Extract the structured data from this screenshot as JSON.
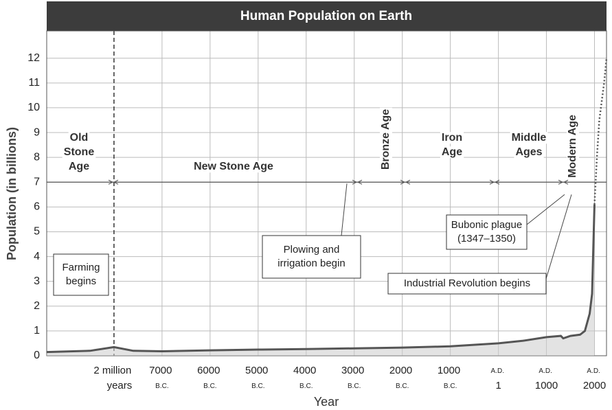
{
  "chart_data": {
    "type": "line",
    "title": "Human Population on Earth",
    "x_label": "Year",
    "y_label": "Population (in billions)",
    "xlim": [
      -9400,
      2250
    ],
    "ylim": [
      0,
      13.1
    ],
    "yticks": [
      0,
      1,
      2,
      3,
      4,
      5,
      6,
      7,
      8,
      9,
      10,
      11,
      12
    ],
    "xticks": [
      {
        "value": -8000,
        "label": "2 million years"
      },
      {
        "value": -7000,
        "label": "7000 B.C."
      },
      {
        "value": -6000,
        "label": "6000 B.C."
      },
      {
        "value": -5000,
        "label": "5000 B.C."
      },
      {
        "value": -4000,
        "label": "4000 B.C."
      },
      {
        "value": -3000,
        "label": "3000 B.C."
      },
      {
        "value": -2000,
        "label": "2000 B.C."
      },
      {
        "value": -1000,
        "label": "1000 B.C."
      },
      {
        "value": 1,
        "label": "A.D. 1"
      },
      {
        "value": 1000,
        "label": "A.D. 1000"
      },
      {
        "value": 2000,
        "label": "A.D. 2000"
      }
    ],
    "grid": true,
    "series": [
      {
        "color": "#555555",
        "style": "solid",
        "x": [
          -9400,
          -8500,
          -8000,
          -7600,
          -7000,
          -6000,
          -5000,
          -4000,
          -3000,
          -2000,
          -1000,
          1,
          500,
          1000,
          1300,
          1350,
          1500,
          1700,
          1800,
          1900,
          1950,
          2000
        ],
        "values": [
          0.15,
          0.2,
          0.35,
          0.2,
          0.18,
          0.22,
          0.25,
          0.27,
          0.3,
          0.33,
          0.38,
          0.5,
          0.6,
          0.75,
          0.8,
          0.7,
          0.8,
          0.85,
          1.0,
          1.7,
          2.5,
          6.1
        ]
      },
      {
        "color": "#555555",
        "style": "dotted",
        "x": [
          2000,
          2050,
          2100,
          2200,
          2250
        ],
        "values": [
          6.1,
          8,
          9.5,
          11,
          12
        ]
      }
    ],
    "eras": [
      {
        "lines": [
          "Old",
          "Stone",
          "Age"
        ]
      },
      {
        "lines": [
          "New Stone Age"
        ]
      },
      {
        "lines": [
          "Bronze Age"
        ]
      },
      {
        "lines": [
          "Iron",
          "Age"
        ]
      },
      {
        "lines": [
          "Middle",
          "Ages"
        ]
      },
      {
        "lines": [
          "Modern Age"
        ]
      }
    ],
    "annotations": [
      {
        "lines": [
          "Farming",
          "begins"
        ]
      },
      {
        "lines": [
          "Plowing and",
          "irrigation begin"
        ]
      },
      {
        "lines": [
          "Bubonic plague",
          "(1347–1350)"
        ]
      },
      {
        "lines": [
          "Industrial Revolution begins"
        ]
      }
    ]
  }
}
